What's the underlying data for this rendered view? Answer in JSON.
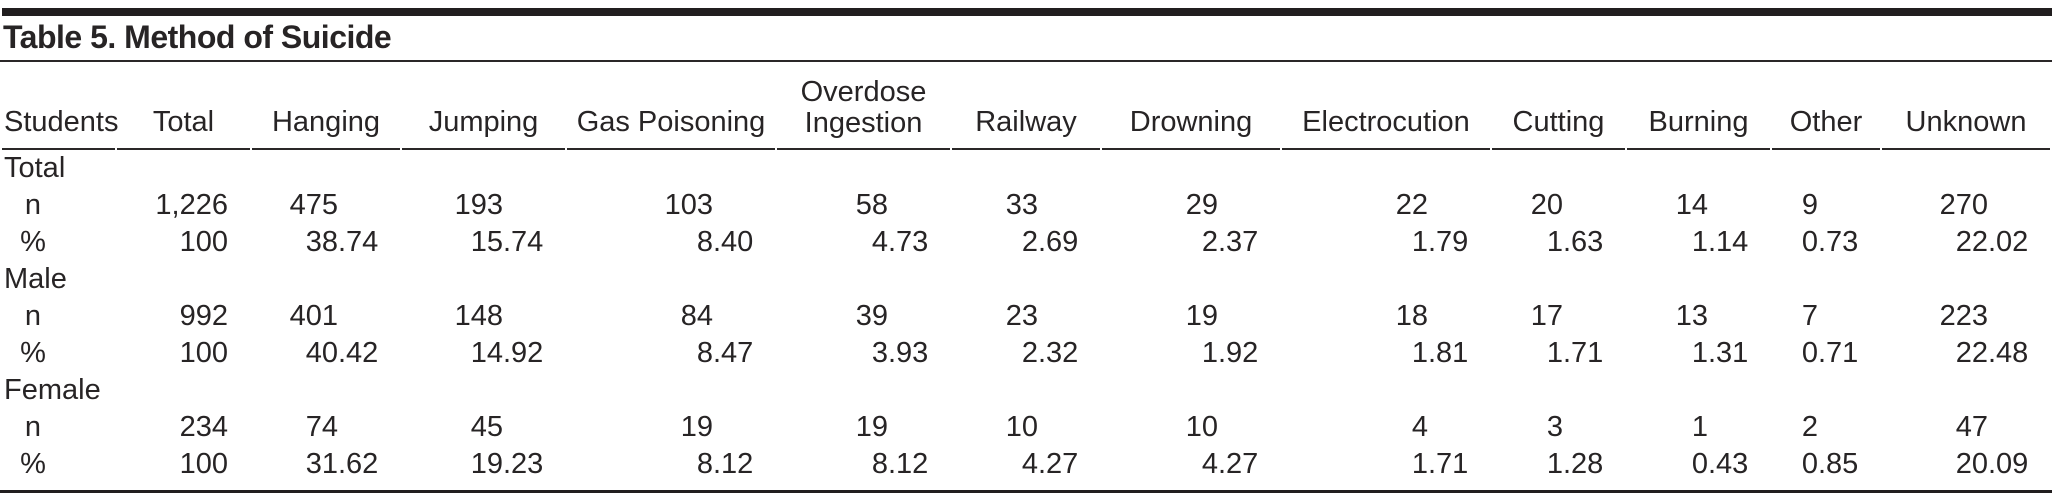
{
  "title": "Table 5. Method of Suicide",
  "colors": {
    "text": "#272425",
    "top_bar": "#211e1f",
    "rule": "#2a2728",
    "background": "#ffffff"
  },
  "table": {
    "columns": [
      "Students",
      "Total",
      "Hanging",
      "Jumping",
      "Gas Poisoning",
      "Overdose Ingestion",
      "Railway",
      "Drowning",
      "Electrocution",
      "Cutting",
      "Burning",
      "Other",
      "Unknown"
    ],
    "groups": [
      {
        "label": "Total",
        "rows": [
          {
            "label": "n",
            "values": [
              "1,226",
              "475",
              "193",
              "103",
              "58",
              "33",
              "29",
              "22",
              "20",
              "14",
              "9",
              "270"
            ]
          },
          {
            "label": "%",
            "values": [
              "100",
              "38.74",
              "15.74",
              "8.40",
              "4.73",
              "2.69",
              "2.37",
              "1.79",
              "1.63",
              "1.14",
              "0.73",
              "22.02"
            ]
          }
        ]
      },
      {
        "label": "Male",
        "rows": [
          {
            "label": "n",
            "values": [
              "992",
              "401",
              "148",
              "84",
              "39",
              "23",
              "19",
              "18",
              "17",
              "13",
              "7",
              "223"
            ]
          },
          {
            "label": "%",
            "values": [
              "100",
              "40.42",
              "14.92",
              "8.47",
              "3.93",
              "2.32",
              "1.92",
              "1.81",
              "1.71",
              "1.31",
              "0.71",
              "22.48"
            ]
          }
        ]
      },
      {
        "label": "Female",
        "rows": [
          {
            "label": "n",
            "values": [
              "234",
              "74",
              "45",
              "19",
              "19",
              "10",
              "10",
              "4",
              "3",
              "1",
              "2",
              "47"
            ]
          },
          {
            "label": "%",
            "values": [
              "100",
              "31.62",
              "19.23",
              "8.12",
              "8.12",
              "4.27",
              "4.27",
              "1.71",
              "1.28",
              "0.43",
              "0.85",
              "20.09"
            ]
          }
        ]
      }
    ]
  }
}
